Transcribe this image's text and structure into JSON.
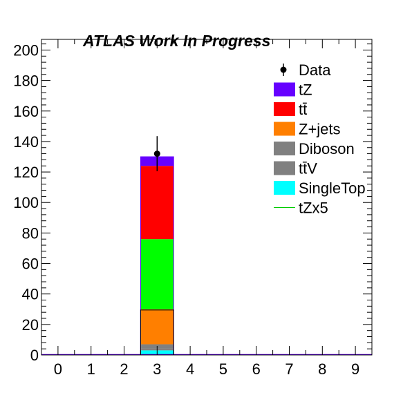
{
  "chart_data": {
    "type": "bar",
    "stacked": true,
    "title": "ATLAS Work In Progress",
    "xlabel": "",
    "ylabel": "",
    "x_ticks": [
      "0",
      "1",
      "2",
      "3",
      "4",
      "5",
      "6",
      "7",
      "8",
      "9"
    ],
    "y_ticks": [
      "0",
      "20",
      "40",
      "60",
      "80",
      "100",
      "120",
      "140",
      "160",
      "180",
      "200"
    ],
    "xlim": [
      -0.5,
      9.5
    ],
    "ylim": [
      0,
      207
    ],
    "grid": false,
    "legend_position": "top-right",
    "bin_center": 3,
    "bin_width": 1,
    "stack": [
      {
        "name": "SingleTop",
        "value": 3,
        "color": "#00ffff"
      },
      {
        "name": "tt̄V",
        "value": 1.5,
        "color": "#808080"
      },
      {
        "name": "Diboson",
        "value": 2.5,
        "color": "#808080"
      },
      {
        "name": "Z+jets",
        "value": 19.5,
        "color": "#ff7f00"
      },
      {
        "name": "",
        "value": 3.5,
        "color": "#ff7f00"
      },
      {
        "name": "",
        "value": 46,
        "color": "#00ff00"
      },
      {
        "name": "tt̄",
        "value": 48,
        "color": "#ff0000"
      },
      {
        "name": "tZ",
        "value": 6,
        "color": "#6600ff"
      }
    ],
    "signal_line": {
      "name": "tZx5",
      "value": 29.5,
      "color": "#00cc00"
    },
    "data": {
      "name": "Data",
      "x": 3,
      "y": 132,
      "err_low": 11.5,
      "err_high": 11.5
    }
  },
  "legend": [
    {
      "key": "data",
      "label": "Data",
      "swatch": "marker",
      "color": "#000000"
    },
    {
      "key": "tz",
      "label": "tZ",
      "swatch": "box",
      "color": "#6600ff"
    },
    {
      "key": "ttbar",
      "label": "tt̄",
      "swatch": "box",
      "color": "#ff0000"
    },
    {
      "key": "zjets",
      "label": "Z+jets",
      "swatch": "box",
      "color": "#ff7f00"
    },
    {
      "key": "diboson",
      "label": "Diboson",
      "swatch": "box",
      "color": "#808080"
    },
    {
      "key": "ttv",
      "label": "tt̄V",
      "swatch": "box",
      "color": "#808080"
    },
    {
      "key": "singletop",
      "label": "SingleTop",
      "swatch": "box",
      "color": "#00ffff"
    },
    {
      "key": "tzx5",
      "label": "tZx5",
      "swatch": "line",
      "color": "#00cc00"
    }
  ]
}
